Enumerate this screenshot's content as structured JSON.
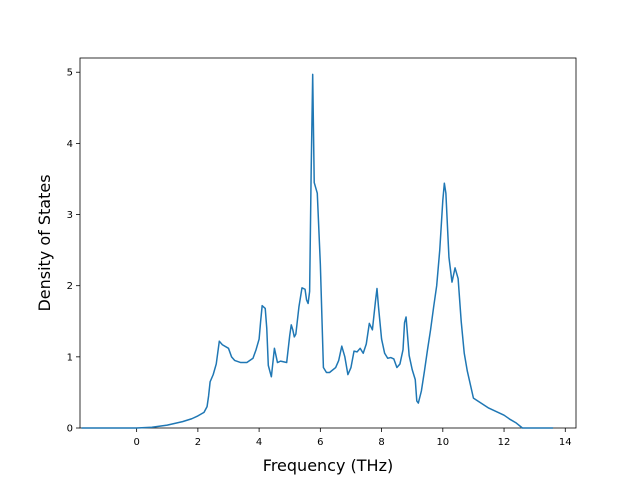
{
  "chart_data": {
    "type": "line",
    "title": "",
    "xlabel": "Frequency (THz)",
    "ylabel": "Density of States",
    "xlim": [
      -1.85,
      14.35
    ],
    "ylim": [
      0,
      5.2
    ],
    "xticks": [
      0,
      2,
      4,
      6,
      8,
      10,
      12,
      14
    ],
    "xtick_labels": [
      "0",
      "2",
      "4",
      "6",
      "8",
      "10",
      "12",
      "14"
    ],
    "yticks": [
      0,
      1,
      2,
      3,
      4,
      5
    ],
    "ytick_labels": [
      "0",
      "1",
      "2",
      "3",
      "4",
      "5"
    ],
    "grid": false,
    "legend": "none",
    "series": [
      {
        "color": "#1f77b4",
        "x": [
          -1.8,
          -1.0,
          0.0,
          0.5,
          1.0,
          1.5,
          1.8,
          2.0,
          2.2,
          2.3,
          2.35,
          2.4,
          2.5,
          2.6,
          2.7,
          2.8,
          3.0,
          3.1,
          3.2,
          3.4,
          3.6,
          3.8,
          3.9,
          4.0,
          4.05,
          4.1,
          4.2,
          4.25,
          4.3,
          4.4,
          4.5,
          4.6,
          4.7,
          4.9,
          5.0,
          5.05,
          5.1,
          5.15,
          5.2,
          5.3,
          5.4,
          5.5,
          5.55,
          5.6,
          5.65,
          5.7,
          5.75,
          5.8,
          5.9,
          6.0,
          6.1,
          6.2,
          6.3,
          6.5,
          6.6,
          6.7,
          6.8,
          6.9,
          7.0,
          7.1,
          7.2,
          7.3,
          7.4,
          7.5,
          7.6,
          7.7,
          7.8,
          7.85,
          7.9,
          8.0,
          8.1,
          8.2,
          8.3,
          8.4,
          8.5,
          8.6,
          8.7,
          8.75,
          8.8,
          8.9,
          9.0,
          9.1,
          9.15,
          9.2,
          9.3,
          9.4,
          9.5,
          9.6,
          9.7,
          9.8,
          9.9,
          10.0,
          10.05,
          10.1,
          10.2,
          10.3,
          10.4,
          10.5,
          10.6,
          10.7,
          10.8,
          11.0,
          11.5,
          12.0,
          12.2,
          12.4,
          12.6,
          13.0,
          13.6
        ],
        "y": [
          0.0,
          0.0,
          0.0,
          0.01,
          0.04,
          0.09,
          0.13,
          0.17,
          0.22,
          0.3,
          0.45,
          0.65,
          0.75,
          0.9,
          1.22,
          1.17,
          1.12,
          1.0,
          0.95,
          0.92,
          0.92,
          0.98,
          1.1,
          1.25,
          1.5,
          1.72,
          1.68,
          1.4,
          0.88,
          0.72,
          1.12,
          0.92,
          0.94,
          0.92,
          1.3,
          1.45,
          1.38,
          1.28,
          1.32,
          1.7,
          1.97,
          1.95,
          1.8,
          1.75,
          1.92,
          3.6,
          4.97,
          3.45,
          3.3,
          2.3,
          0.85,
          0.78,
          0.78,
          0.85,
          0.95,
          1.15,
          1.0,
          0.75,
          0.85,
          1.08,
          1.07,
          1.12,
          1.05,
          1.18,
          1.47,
          1.38,
          1.78,
          1.96,
          1.7,
          1.25,
          1.05,
          0.98,
          0.99,
          0.97,
          0.85,
          0.9,
          1.1,
          1.48,
          1.56,
          1.02,
          0.82,
          0.68,
          0.38,
          0.35,
          0.52,
          0.8,
          1.1,
          1.38,
          1.7,
          2.0,
          2.5,
          3.2,
          3.44,
          3.3,
          2.4,
          2.05,
          2.25,
          2.1,
          1.5,
          1.05,
          0.8,
          0.42,
          0.28,
          0.18,
          0.12,
          0.07,
          0.0,
          0.0,
          0.0
        ]
      }
    ]
  }
}
